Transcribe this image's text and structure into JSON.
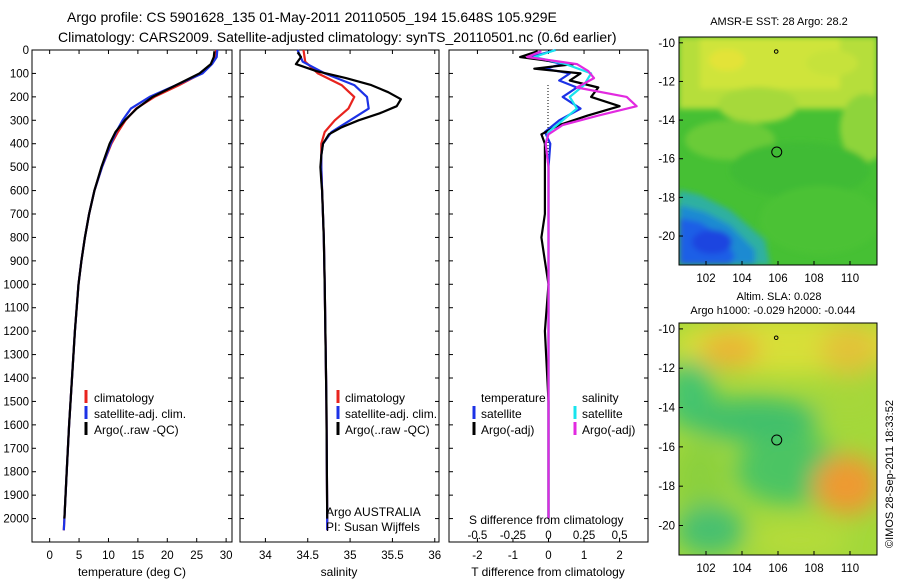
{
  "header": {
    "title": "Argo profile: CS 5901628_135 01-May-2011 20110505_194 15.648S 105.929E",
    "subtitle": "Climatology: CARS2009. Satellite-adjusted climatology: synTS_20110501.nc (0.6d earlier)"
  },
  "colors": {
    "climatology": "#e8231e",
    "satellite": "#1c32e6",
    "argo": "#000000",
    "sat_cyan": "#18e4ee",
    "argo_magenta": "#e22ae0"
  },
  "watermark": "©IMOS 28-Sep-2011 18:33:52",
  "chart_data": [
    {
      "id": "temperature",
      "type": "line",
      "xlabel": "temperature (deg C)",
      "ylabel": "",
      "xlim": [
        -3,
        31
      ],
      "ylim": [
        2100,
        0
      ],
      "xticks": [
        0,
        5,
        10,
        15,
        20,
        25,
        30
      ],
      "yticks": [
        0,
        100,
        200,
        300,
        400,
        500,
        600,
        700,
        800,
        900,
        1000,
        1100,
        1200,
        1300,
        1400,
        1500,
        1600,
        1700,
        1800,
        1900,
        2000
      ],
      "legend": [
        "climatology",
        "satellite-adj. clim.",
        "Argo(..raw -QC)"
      ],
      "legend_position": "lower-center",
      "series": [
        {
          "name": "climatology",
          "color": "#e8231e",
          "depth": [
            0,
            30,
            60,
            100,
            150,
            200,
            250,
            300,
            350,
            400,
            500,
            600,
            700,
            800,
            900,
            1000,
            1200,
            1400,
            1600,
            1800,
            2000,
            2050
          ],
          "values": [
            28.3,
            28.2,
            27.5,
            25.8,
            22.0,
            17.8,
            14.7,
            12.9,
            11.6,
            10.5,
            8.9,
            7.6,
            6.7,
            6.0,
            5.4,
            4.9,
            4.3,
            3.8,
            3.3,
            2.9,
            2.5,
            2.4
          ]
        },
        {
          "name": "satellite-adj. clim.",
          "color": "#1c32e6",
          "depth": [
            0,
            30,
            60,
            100,
            150,
            200,
            250,
            300,
            350,
            400,
            500,
            600,
            700,
            800,
            900,
            1000,
            1200,
            1400,
            1600,
            1800,
            2000,
            2050
          ],
          "values": [
            28.5,
            28.4,
            27.6,
            26.0,
            21.5,
            17.0,
            13.8,
            12.4,
            11.3,
            10.4,
            8.9,
            7.6,
            6.7,
            6.0,
            5.4,
            4.9,
            4.3,
            3.8,
            3.3,
            2.9,
            2.5,
            2.4
          ]
        },
        {
          "name": "Argo(..raw -QC)",
          "color": "#000000",
          "depth": [
            5,
            30,
            60,
            100,
            150,
            200,
            250,
            300,
            350,
            400,
            500,
            600,
            700,
            800,
            900,
            1000,
            1200,
            1400,
            1600,
            1800,
            2000
          ],
          "values": [
            28.0,
            27.9,
            27.4,
            25.5,
            21.5,
            17.5,
            14.8,
            12.8,
            11.2,
            10.2,
            8.8,
            7.6,
            6.7,
            6.0,
            5.4,
            4.9,
            4.3,
            3.8,
            3.3,
            2.9,
            2.5
          ]
        }
      ]
    },
    {
      "id": "salinity",
      "type": "line",
      "xlabel": "salinity",
      "ylabel": "",
      "xlim": [
        33.7,
        36.05
      ],
      "ylim": [
        2100,
        0
      ],
      "xticks": [
        34,
        34.5,
        35,
        35.5,
        36
      ],
      "legend": [
        "climatology",
        "satellite-adj. clim.",
        "Argo(..raw -QC)"
      ],
      "legend_position": "lower-center",
      "annotation": [
        "Argo AUSTRALIA",
        "PI: Susan Wijffels"
      ],
      "series": [
        {
          "name": "climatology",
          "color": "#e8231e",
          "depth": [
            0,
            50,
            100,
            150,
            200,
            250,
            300,
            350,
            400,
            450,
            500,
            600,
            800,
            1000,
            1500,
            2000,
            2050
          ],
          "values": [
            34.45,
            34.47,
            34.62,
            34.9,
            35.05,
            34.98,
            34.82,
            34.7,
            34.66,
            34.66,
            34.66,
            34.67,
            34.69,
            34.7,
            34.72,
            34.73,
            34.73
          ]
        },
        {
          "name": "satellite-adj. clim.",
          "color": "#1c32e6",
          "depth": [
            0,
            50,
            100,
            150,
            200,
            250,
            300,
            350,
            400,
            450,
            500,
            600,
            800,
            1000,
            1500,
            2000,
            2050
          ],
          "values": [
            34.38,
            34.44,
            34.7,
            35.05,
            35.2,
            35.22,
            35.0,
            34.78,
            34.68,
            34.66,
            34.66,
            34.67,
            34.69,
            34.7,
            34.72,
            34.73,
            34.73
          ]
        },
        {
          "name": "Argo(..raw -QC)",
          "color": "#000000",
          "depth": [
            10,
            30,
            60,
            90,
            120,
            150,
            180,
            210,
            240,
            270,
            300,
            330,
            360,
            400,
            450,
            500,
            560,
            600,
            800,
            1000,
            1500,
            2000
          ],
          "values": [
            34.38,
            34.42,
            34.36,
            34.6,
            34.95,
            35.25,
            35.45,
            35.6,
            35.55,
            35.35,
            35.1,
            34.9,
            34.75,
            34.68,
            34.66,
            34.65,
            34.66,
            34.67,
            34.69,
            34.7,
            34.72,
            34.73
          ]
        }
      ]
    },
    {
      "id": "difference",
      "type": "line",
      "xlabel": "T difference from climatology",
      "xlabel_top": "S difference from climatology",
      "xlim": [
        -2.8,
        2.8
      ],
      "xticks": [
        -2,
        -1,
        0,
        1,
        2
      ],
      "xticks_top": [
        -0.5,
        -0.25,
        0,
        0.25,
        0.5
      ],
      "ylim": [
        2100,
        0
      ],
      "legend_temperature": {
        "header": "temperature",
        "entries": [
          "satellite",
          "Argo(-adj)"
        ]
      },
      "legend_salinity": {
        "header": "salinity",
        "entries": [
          "satellite",
          "Argo(-adj)"
        ]
      },
      "series": [
        {
          "name": "temperature satellite",
          "color": "#1c32e6",
          "depth": [
            0,
            30,
            60,
            80,
            100,
            130,
            160,
            200,
            250,
            300,
            350,
            400,
            500,
            700,
            1000,
            1500,
            2000
          ],
          "values": [
            0.2,
            -0.5,
            0.4,
            -0.1,
            0.6,
            0.3,
            0.8,
            0.4,
            0.9,
            0.3,
            -0.1,
            0.05,
            0.0,
            0.0,
            0.0,
            0.0,
            0.0
          ]
        },
        {
          "name": "temperature Argo(-adj)",
          "color": "#000000",
          "depth": [
            5,
            30,
            60,
            80,
            100,
            130,
            160,
            200,
            240,
            280,
            320,
            360,
            400,
            500,
            700,
            800,
            900,
            1000,
            1200,
            1500,
            1700,
            2000
          ],
          "values": [
            -0.3,
            -0.8,
            0.7,
            -0.4,
            0.9,
            0.6,
            1.4,
            1.2,
            2.0,
            1.1,
            0.3,
            -0.2,
            -0.1,
            -0.1,
            -0.1,
            -0.2,
            -0.1,
            0.0,
            -0.1,
            0.0,
            0.0,
            0.0
          ]
        },
        {
          "name": "salinity satellite",
          "color": "#18e4ee",
          "depth": [
            0,
            30,
            60,
            100,
            150,
            200,
            250,
            300,
            350,
            400,
            500,
            700,
            1000,
            1500,
            2000
          ],
          "values": [
            0.05,
            -0.1,
            0.12,
            0.3,
            0.25,
            0.15,
            0.2,
            0.1,
            0.0,
            -0.02,
            0.0,
            0.0,
            0.0,
            0.0,
            0.0
          ]
        },
        {
          "name": "salinity Argo(-adj)",
          "color": "#e22ae0",
          "depth": [
            5,
            30,
            60,
            90,
            120,
            160,
            200,
            240,
            280,
            320,
            360,
            400,
            500,
            700,
            1000,
            1500,
            2000
          ],
          "values": [
            -0.05,
            -0.15,
            0.2,
            0.28,
            0.32,
            0.2,
            0.55,
            0.62,
            0.35,
            0.1,
            0.0,
            -0.02,
            0.0,
            0.0,
            0.0,
            0.0,
            0.0
          ]
        }
      ]
    },
    {
      "id": "sst_map",
      "type": "heatmap",
      "title": "AMSR-E SST: 28 Argo: 28.2",
      "xlim": [
        100.5,
        111.5
      ],
      "ylim": [
        -21.5,
        -9.7
      ],
      "xticks": [
        102,
        104,
        106,
        108,
        110
      ],
      "yticks": [
        -10,
        -12,
        -14,
        -16,
        -18,
        -20
      ],
      "markers": [
        {
          "lon": 105.93,
          "lat": -15.65
        },
        {
          "lon": 105.9,
          "lat": -10.45
        }
      ]
    },
    {
      "id": "sla_map",
      "type": "heatmap",
      "title": "Altim. SLA: 0.028",
      "subtitle": "Argo h1000: -0.029 h2000: -0.044",
      "xlim": [
        100.5,
        111.5
      ],
      "ylim": [
        -21.5,
        -9.7
      ],
      "xticks": [
        102,
        104,
        106,
        108,
        110
      ],
      "yticks": [
        -10,
        -12,
        -14,
        -16,
        -18,
        -20
      ],
      "markers": [
        {
          "lon": 105.93,
          "lat": -15.65
        },
        {
          "lon": 105.9,
          "lat": -10.45
        }
      ]
    }
  ]
}
